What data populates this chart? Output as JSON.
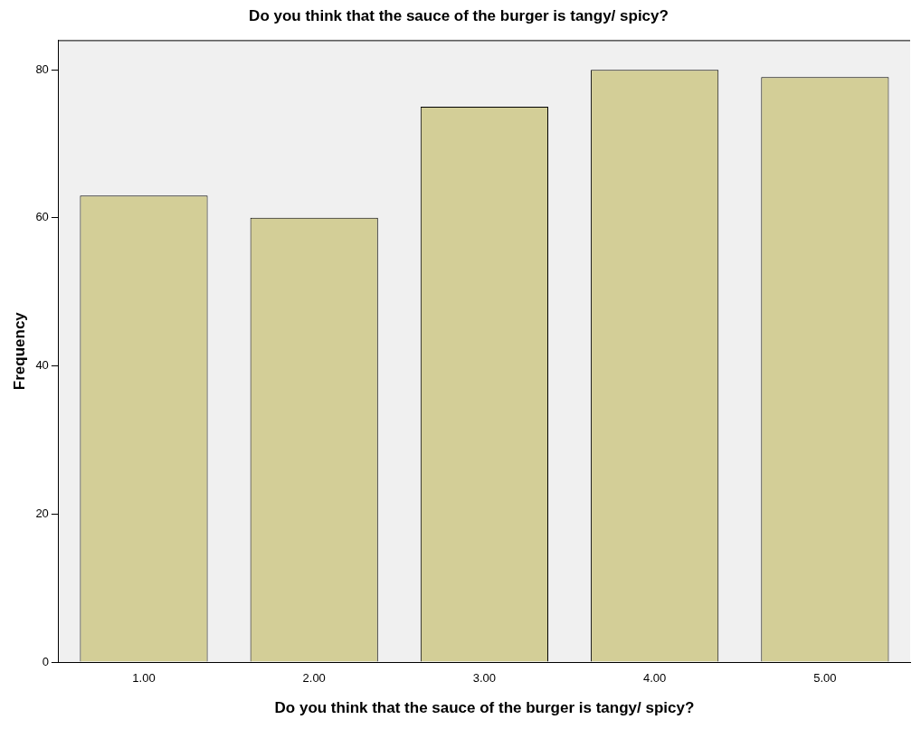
{
  "chart_data": {
    "type": "bar",
    "title": "Do you think that the sauce of the burger is tangy/ spicy?",
    "xlabel": "Do you think that the sauce of the burger is tangy/ spicy?",
    "ylabel": "Frequency",
    "categories": [
      "1.00",
      "2.00",
      "3.00",
      "4.00",
      "5.00"
    ],
    "values": [
      63,
      60,
      75,
      80,
      79
    ],
    "color": "#d3ce97",
    "ylim": [
      0,
      84
    ],
    "yticks": [
      0,
      20,
      40,
      60,
      80
    ],
    "grid": false,
    "legend": false
  }
}
